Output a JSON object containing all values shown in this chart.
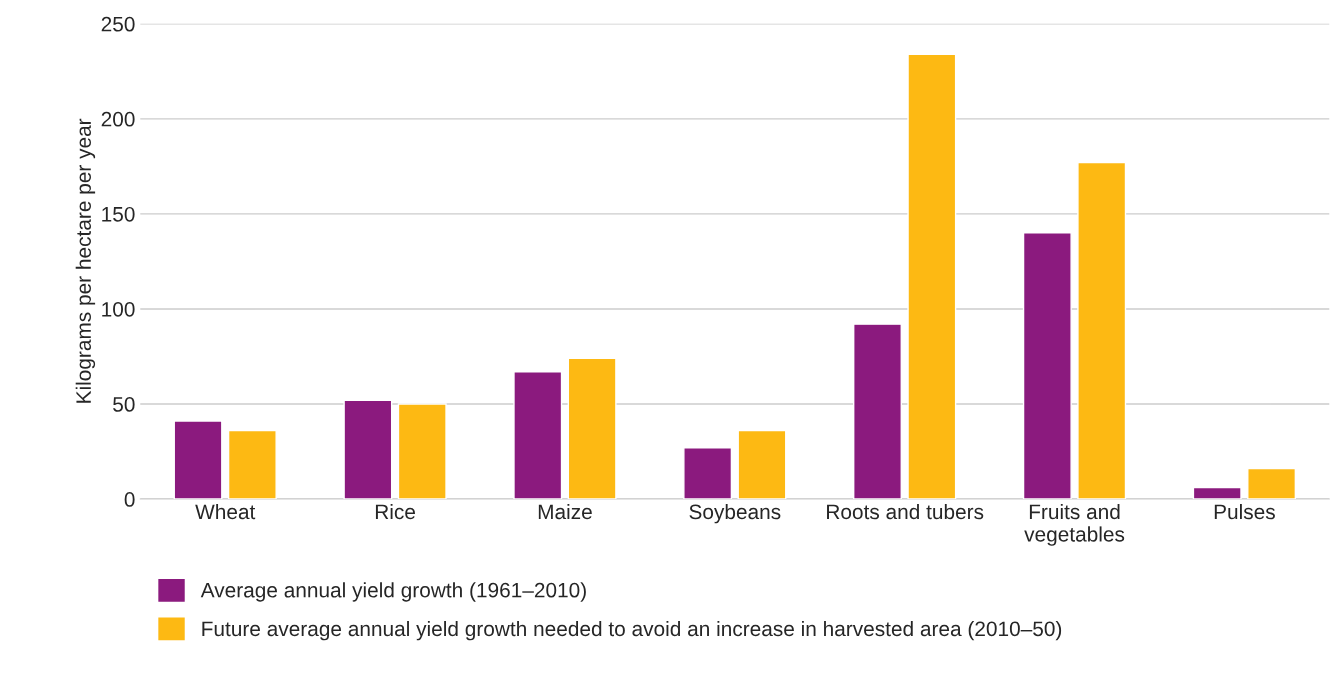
{
  "chart_data": {
    "type": "bar",
    "ylabel": "Kilograms per hectare per year",
    "categories": [
      "Wheat",
      "Rice",
      "Maize",
      "Soybeans",
      "Roots and tubers",
      "Fruits and\nvegetables",
      "Pulses"
    ],
    "series": [
      {
        "name": "Average annual yield growth (1961–2010)",
        "color": "#8b1a7e",
        "values": [
          41,
          52,
          67,
          27,
          92,
          140,
          6
        ]
      },
      {
        "name": "Future average annual yield growth needed to avoid an increase in harvested area (2010–50)",
        "color": "#fdb913",
        "values": [
          36,
          50,
          74,
          36,
          234,
          177,
          16
        ]
      }
    ],
    "ylim": [
      0,
      250
    ],
    "yticks": [
      0,
      50,
      100,
      150,
      200,
      250
    ],
    "grid": "y",
    "legend": "bottom"
  }
}
